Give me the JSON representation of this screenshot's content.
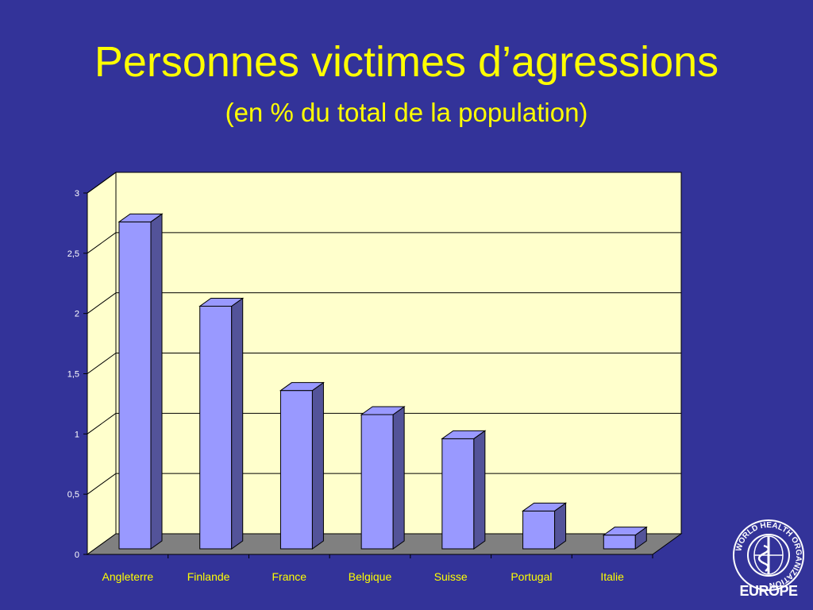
{
  "title": "Personnes victimes d’agressions",
  "subtitle": "(en % du total de la population)",
  "logo": {
    "org_name": "WORLD HEALTH ORGANIZATION",
    "region": "EUROPE"
  },
  "colors": {
    "background": "#333399",
    "title": "#ffff00",
    "plot_area": "#ffffcc",
    "bar_front": "#9999ff",
    "bar_side": "#535399",
    "floor": "#808080"
  },
  "chart_data": {
    "type": "bar",
    "categories": [
      "Angleterre",
      "Finlande",
      "France",
      "Belgique",
      "Suisse",
      "Portugal",
      "Italie"
    ],
    "values": [
      2.8,
      2.1,
      1.4,
      1.2,
      1.0,
      0.4,
      0.2
    ],
    "ylim": [
      0,
      3
    ],
    "yticks": [
      "0",
      "0,5",
      "1",
      "1,5",
      "2",
      "2,5",
      "3"
    ],
    "ytick_values": [
      0,
      0.5,
      1,
      1.5,
      2,
      2.5,
      3
    ],
    "grid": true,
    "style": "3d"
  }
}
